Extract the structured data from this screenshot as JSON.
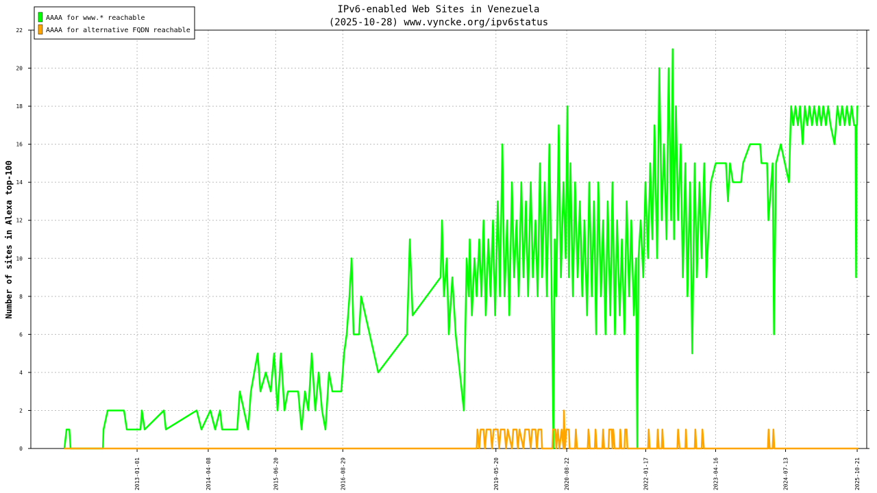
{
  "chart_data": {
    "type": "line",
    "title": "IPv6-enabled Web Sites in Venezuela",
    "subtitle": "(2025-10-28) www.vyncke.org/ipv6status",
    "y_label": "Number of sites in Alexa top-100",
    "xlim": [
      "2011-02-11",
      "2025-12-22"
    ],
    "xticks": [
      "2013-01-01",
      "2014-04-08",
      "2015-06-20",
      "2016-08-29",
      "2019-05-20",
      "2020-08-22",
      "2022-01-17",
      "2023-04-16",
      "2024-07-13",
      "2025-10-21"
    ],
    "ylim": [
      0,
      22
    ],
    "yticks": [
      0,
      2,
      4,
      6,
      8,
      10,
      12,
      14,
      16,
      18,
      20,
      22
    ],
    "grid": true,
    "legend": "upper left",
    "series": [
      {
        "name": "AAAA for www.* reachable",
        "color": "#00ff00",
        "x": [
          "2011-09-17",
          "2011-10-01",
          "2011-10-19",
          "2011-10-27",
          "2012-05-24",
          "2012-05-28",
          "2012-06-24",
          "2012-10-08",
          "2012-10-26",
          "2013-01-23",
          "2013-02-01",
          "2013-02-19",
          "2013-06-24",
          "2013-07-07",
          "2014-01-23",
          "2014-02-23",
          "2014-04-22",
          "2014-05-23",
          "2014-06-23",
          "2014-07-07",
          "2014-10-13",
          "2014-10-30",
          "2014-11-26",
          "2014-12-23",
          "2015-01-10",
          "2015-02-01",
          "2015-02-23",
          "2015-03-13",
          "2015-04-17",
          "2015-05-19",
          "2015-06-10",
          "2015-07-02",
          "2015-07-24",
          "2015-08-16",
          "2015-09-07",
          "2015-11-13",
          "2015-12-05",
          "2015-12-27",
          "2016-01-18",
          "2016-02-09",
          "2016-03-03",
          "2016-03-25",
          "2016-04-16",
          "2016-05-08",
          "2016-05-31",
          "2016-06-22",
          "2016-08-19",
          "2016-09-06",
          "2016-09-23",
          "2016-10-11",
          "2016-10-25",
          "2016-11-07",
          "2016-12-12",
          "2016-12-26",
          "2017-04-16",
          "2017-10-20",
          "2017-11-07",
          "2017-11-25",
          "2018-05-26",
          "2018-06-04",
          "2018-06-17",
          "2018-07-05",
          "2018-07-18",
          "2018-08-10",
          "2018-09-01",
          "2018-10-24",
          "2018-11-11",
          "2018-11-25",
          "2018-12-01",
          "2018-12-15",
          "2019-01-01",
          "2019-01-15",
          "2019-02-01",
          "2019-02-15",
          "2019-03-01",
          "2019-03-15",
          "2019-04-01",
          "2019-04-15",
          "2019-05-01",
          "2019-05-15",
          "2019-06-01",
          "2019-06-15",
          "2019-07-01",
          "2019-07-15",
          "2019-08-01",
          "2019-08-15",
          "2019-09-01",
          "2019-09-15",
          "2019-10-01",
          "2019-10-15",
          "2019-11-01",
          "2019-11-15",
          "2019-12-01",
          "2019-12-15",
          "2020-01-01",
          "2020-01-15",
          "2020-02-01",
          "2020-02-15",
          "2020-03-01",
          "2020-03-15",
          "2020-04-01",
          "2020-04-15",
          "2020-05-01",
          "2020-05-15",
          "2020-05-28",
          "2020-06-05",
          "2020-06-15",
          "2020-07-01",
          "2020-07-15",
          "2020-08-01",
          "2020-08-15",
          "2020-08-26",
          "2020-09-05",
          "2020-09-15",
          "2020-10-01",
          "2020-10-15",
          "2020-11-01",
          "2020-11-15",
          "2020-12-01",
          "2020-12-15",
          "2021-01-01",
          "2021-01-15",
          "2021-02-01",
          "2021-02-15",
          "2021-03-01",
          "2021-03-15",
          "2021-04-01",
          "2021-04-15",
          "2021-05-01",
          "2021-05-15",
          "2021-06-01",
          "2021-06-15",
          "2021-07-01",
          "2021-07-15",
          "2021-08-01",
          "2021-08-15",
          "2021-09-01",
          "2021-09-15",
          "2021-10-01",
          "2021-10-15",
          "2021-11-01",
          "2021-11-15",
          "2021-11-23",
          "2021-12-01",
          "2021-12-15",
          "2022-01-01",
          "2022-01-15",
          "2022-02-01",
          "2022-02-15",
          "2022-03-01",
          "2022-03-15",
          "2022-04-01",
          "2022-04-15",
          "2022-05-01",
          "2022-05-15",
          "2022-06-01",
          "2022-06-15",
          "2022-07-01",
          "2022-07-11",
          "2022-07-20",
          "2022-08-01",
          "2022-08-15",
          "2022-09-01",
          "2022-09-15",
          "2022-10-01",
          "2022-10-15",
          "2022-11-01",
          "2022-11-15",
          "2022-12-01",
          "2022-12-15",
          "2023-01-01",
          "2023-01-15",
          "2023-02-01",
          "2023-02-15",
          "2023-03-16",
          "2023-04-16",
          "2023-06-22",
          "2023-07-05",
          "2023-07-18",
          "2023-08-06",
          "2023-09-28",
          "2023-10-11",
          "2023-11-25",
          "2024-01-30",
          "2024-02-08",
          "2024-03-15",
          "2024-03-24",
          "2024-04-20",
          "2024-04-29",
          "2024-05-12",
          "2024-06-12",
          "2024-08-04",
          "2024-08-18",
          "2024-09-01",
          "2024-09-15",
          "2024-10-01",
          "2024-10-15",
          "2024-11-01",
          "2024-11-15",
          "2024-12-01",
          "2024-12-15",
          "2025-01-01",
          "2025-01-15",
          "2025-02-01",
          "2025-02-15",
          "2025-03-01",
          "2025-03-15",
          "2025-04-01",
          "2025-04-15",
          "2025-05-01",
          "2025-05-27",
          "2025-06-15",
          "2025-07-01",
          "2025-07-15",
          "2025-08-01",
          "2025-08-15",
          "2025-09-01",
          "2025-09-15",
          "2025-10-01",
          "2025-10-10",
          "2025-10-14",
          "2025-10-17",
          "2025-10-20",
          "2025-10-22",
          "2025-10-28"
        ],
        "values": [
          0,
          1,
          1,
          0,
          0,
          1,
          2,
          2,
          1,
          1,
          2,
          1,
          2,
          1,
          2,
          1,
          2,
          1,
          2,
          1,
          1,
          3,
          2,
          1,
          3,
          4,
          5,
          3,
          4,
          3,
          5,
          2,
          5,
          2,
          3,
          3,
          1,
          3,
          2,
          5,
          2,
          4,
          2,
          1,
          4,
          3,
          3,
          5,
          6,
          8,
          10,
          6,
          6,
          8,
          4,
          6,
          11,
          7,
          9,
          12,
          8,
          10,
          6,
          9,
          6,
          2,
          10,
          8,
          11,
          7,
          10,
          8,
          11,
          8,
          12,
          7,
          11,
          8,
          12,
          7,
          13,
          8,
          16,
          8,
          12,
          7,
          14,
          9,
          12,
          8,
          14,
          9,
          13,
          8,
          14,
          9,
          12,
          8,
          15,
          9,
          14,
          8,
          16,
          9,
          0,
          11,
          8,
          17,
          9,
          14,
          10,
          18,
          9,
          15,
          8,
          14,
          9,
          13,
          8,
          12,
          7,
          14,
          8,
          13,
          6,
          14,
          8,
          12,
          6,
          13,
          7,
          14,
          6,
          12,
          7,
          11,
          6,
          13,
          8,
          12,
          7,
          10,
          0,
          10,
          12,
          9,
          14,
          10,
          15,
          11,
          17,
          10,
          20,
          12,
          16,
          11,
          20,
          12,
          21,
          11,
          18,
          12,
          16,
          9,
          15,
          8,
          14,
          5,
          15,
          9,
          14,
          10,
          15,
          9,
          14,
          15,
          15,
          13,
          15,
          14,
          14,
          15,
          16,
          16,
          15,
          15,
          12,
          15,
          6,
          15,
          16,
          14,
          18,
          17,
          18,
          17,
          18,
          16,
          18,
          17,
          18,
          17,
          18,
          17,
          18,
          17,
          18,
          17,
          18,
          17,
          16,
          18,
          17,
          18,
          17,
          18,
          17,
          18,
          17,
          17,
          9,
          17,
          17,
          18,
          18
        ]
      },
      {
        "name": "AAAA for alternative FQDN reachable",
        "color": "#ffa500",
        "x": [
          "2011-09-17",
          "2019-01-15",
          "2019-01-20",
          "2019-02-01",
          "2019-02-10",
          "2019-03-01",
          "2019-03-10",
          "2019-03-20",
          "2019-04-15",
          "2019-04-25",
          "2019-05-05",
          "2019-06-01",
          "2019-06-10",
          "2019-06-20",
          "2019-07-15",
          "2019-07-25",
          "2019-08-05",
          "2019-09-01",
          "2019-09-10",
          "2019-10-01",
          "2019-10-10",
          "2019-10-20",
          "2019-11-15",
          "2019-11-25",
          "2019-12-20",
          "2020-01-01",
          "2020-01-10",
          "2020-02-01",
          "2020-02-10",
          "2020-02-20",
          "2020-03-10",
          "2020-03-15",
          "2020-05-20",
          "2020-05-25",
          "2020-06-10",
          "2020-06-15",
          "2020-06-25",
          "2020-07-05",
          "2020-07-20",
          "2020-08-01",
          "2020-08-04",
          "2020-08-10",
          "2020-08-20",
          "2020-09-05",
          "2020-09-10",
          "2020-10-15",
          "2020-10-20",
          "2020-10-28",
          "2021-01-05",
          "2021-01-10",
          "2021-01-20",
          "2021-02-20",
          "2021-02-25",
          "2021-03-05",
          "2021-04-10",
          "2021-04-15",
          "2021-04-22",
          "2021-05-20",
          "2021-05-25",
          "2021-06-10",
          "2021-06-15",
          "2021-06-20",
          "2021-06-30",
          "2021-08-01",
          "2021-08-05",
          "2021-08-12",
          "2021-09-01",
          "2021-09-05",
          "2021-09-15",
          "2021-09-20",
          "2022-02-01",
          "2022-02-05",
          "2022-02-12",
          "2022-04-01",
          "2022-04-05",
          "2022-04-12",
          "2022-05-01",
          "2022-05-05",
          "2022-05-12",
          "2022-08-10",
          "2022-08-15",
          "2022-08-25",
          "2022-10-01",
          "2022-10-05",
          "2022-10-10",
          "2022-12-01",
          "2022-12-05",
          "2022-12-12",
          "2023-01-15",
          "2023-01-20",
          "2023-01-30",
          "2024-03-20",
          "2024-03-25",
          "2024-04-01",
          "2024-04-20",
          "2024-04-25",
          "2024-05-01",
          "2025-10-28"
        ],
        "values": [
          0,
          0,
          1,
          0,
          1,
          1,
          0,
          1,
          1,
          0,
          1,
          1,
          0,
          1,
          1,
          0,
          1,
          0,
          1,
          1,
          0,
          1,
          0,
          1,
          1,
          0,
          1,
          1,
          0,
          1,
          1,
          0,
          0,
          1,
          1,
          0,
          1,
          0,
          1,
          0,
          2,
          0,
          1,
          1,
          0,
          0,
          1,
          0,
          0,
          1,
          0,
          0,
          1,
          0,
          0,
          1,
          0,
          0,
          1,
          1,
          0,
          1,
          0,
          0,
          1,
          0,
          0,
          1,
          1,
          0,
          0,
          1,
          0,
          0,
          1,
          0,
          0,
          1,
          0,
          0,
          1,
          0,
          0,
          1,
          0,
          0,
          1,
          0,
          0,
          1,
          0,
          0,
          1,
          0,
          0,
          1,
          0,
          0
        ]
      }
    ]
  }
}
